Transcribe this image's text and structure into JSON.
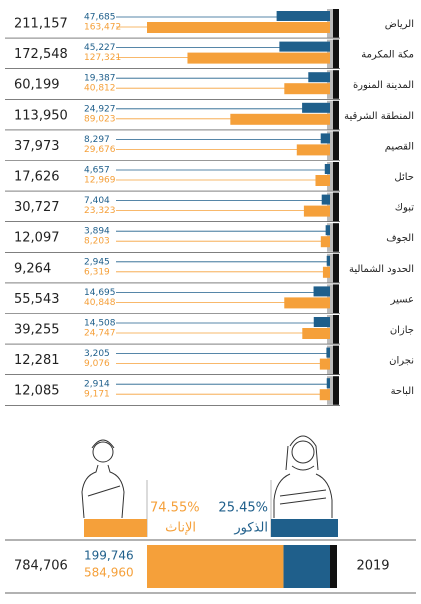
{
  "chart_data": {
    "type": "bar",
    "categories": [
      "الرياض",
      "مكة المكرمة",
      "المدينة المنورة",
      "المنطقة الشرقية",
      "القصيم",
      "حائل",
      "تبوك",
      "الجوف",
      "الحدود الشمالية",
      "عسير",
      "جازان",
      "نجران",
      "الباحة"
    ],
    "totals": [
      "211,157",
      "172,548",
      "60,199",
      "113,950",
      "37,973",
      "17,626",
      "30,727",
      "12,097",
      "9,264",
      "55,543",
      "39,255",
      "12,281",
      "12,085"
    ],
    "series": [
      {
        "color": "#1f5f8b",
        "values": [
          47685,
          45227,
          19387,
          24927,
          8297,
          4657,
          7404,
          3894,
          2945,
          14695,
          14508,
          3205,
          2914
        ],
        "value_labels": [
          "47,685",
          "45,227",
          "19,387",
          "24,927",
          "8,297",
          "4,657",
          "7,404",
          "3,894",
          "2,945",
          "14,695",
          "14,508",
          "3,205",
          "2,914"
        ]
      },
      {
        "color": "#f5a03a",
        "values": [
          163472,
          127321,
          40812,
          89023,
          29676,
          12969,
          23323,
          8203,
          6319,
          40848,
          24747,
          9076,
          9171
        ],
        "value_labels": [
          "163,472",
          "127,321",
          "40,812",
          "89,023",
          "29,676",
          "12,969",
          "23,323",
          "8,203",
          "6,319",
          "40,848",
          "24,747",
          "9,076",
          "9,171"
        ]
      }
    ],
    "summary": {
      "total": "784,706",
      "year": "2019",
      "male": {
        "name": "الذكور",
        "share": "25.45%",
        "value": 199746,
        "value_label": "199,746"
      },
      "female": {
        "name": "الإناث",
        "share": "74.55%",
        "value": 584960,
        "value_label": "584,960"
      }
    }
  }
}
